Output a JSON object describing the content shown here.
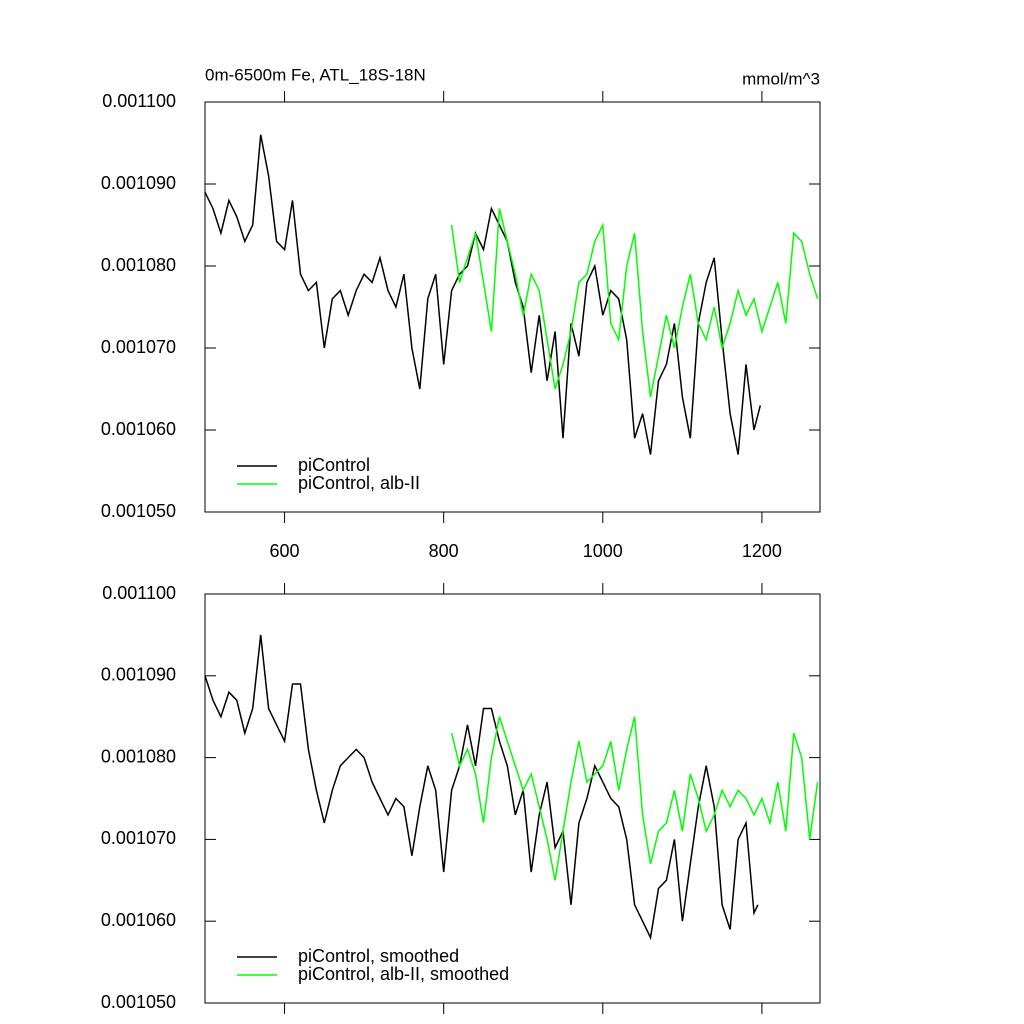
{
  "chart_data": [
    {
      "type": "line",
      "title": "0m-6500m Fe, ATL_18S-18N",
      "units": "mmol/m^3",
      "xlim": [
        500,
        1273
      ],
      "xticks": [
        600,
        800,
        1000,
        1200
      ],
      "ylim": [
        0.00105,
        0.0011
      ],
      "yticks": [
        {
          "value": 0.00105,
          "label": "0.001050"
        },
        {
          "value": 0.00106,
          "label": "0.001060"
        },
        {
          "value": 0.00107,
          "label": "0.001070"
        },
        {
          "value": 0.00108,
          "label": "0.001080"
        },
        {
          "value": 0.00109,
          "label": "0.001090"
        },
        {
          "value": 0.0011,
          "label": "0.001100"
        }
      ],
      "legend": "lower left",
      "show_xtick_labels": true,
      "series": [
        {
          "name": "piControl",
          "color": "#000000",
          "x": [
            500,
            510,
            520,
            530,
            540,
            550,
            560,
            570,
            580,
            590,
            600,
            610,
            620,
            630,
            640,
            650,
            660,
            670,
            680,
            690,
            700,
            710,
            720,
            730,
            740,
            750,
            760,
            770,
            780,
            790,
            800,
            810,
            820,
            830,
            840,
            850,
            860,
            870,
            880,
            890,
            900,
            910,
            920,
            930,
            940,
            950,
            960,
            970,
            980,
            990,
            1000,
            1010,
            1020,
            1030,
            1040,
            1050,
            1060,
            1070,
            1080,
            1090,
            1100,
            1110,
            1120,
            1130,
            1140,
            1150,
            1160,
            1170,
            1180,
            1190,
            1198
          ],
          "values": [
            0.001089,
            0.001087,
            0.001084,
            0.001088,
            0.001086,
            0.001083,
            0.001085,
            0.001096,
            0.001091,
            0.001083,
            0.001082,
            0.001088,
            0.001079,
            0.001077,
            0.001078,
            0.00107,
            0.001076,
            0.001077,
            0.001074,
            0.001077,
            0.001079,
            0.001078,
            0.001081,
            0.001077,
            0.001075,
            0.001079,
            0.00107,
            0.001065,
            0.001076,
            0.001079,
            0.001068,
            0.001077,
            0.001079,
            0.00108,
            0.001084,
            0.001082,
            0.001087,
            0.001085,
            0.001083,
            0.001078,
            0.001075,
            0.001067,
            0.001074,
            0.001066,
            0.001072,
            0.001059,
            0.001073,
            0.001069,
            0.001078,
            0.00108,
            0.001074,
            0.001077,
            0.001076,
            0.001071,
            0.001059,
            0.001062,
            0.001057,
            0.001066,
            0.001068,
            0.001073,
            0.001064,
            0.001059,
            0.001073,
            0.001078,
            0.001081,
            0.001071,
            0.001062,
            0.001057,
            0.001068,
            0.00106,
            0.001063
          ]
        },
        {
          "name": "piControl, alb-II",
          "color": "#00ff00",
          "x": [
            810,
            820,
            830,
            840,
            850,
            860,
            870,
            880,
            890,
            900,
            910,
            920,
            930,
            940,
            950,
            960,
            970,
            980,
            990,
            1000,
            1010,
            1020,
            1030,
            1040,
            1050,
            1060,
            1070,
            1080,
            1090,
            1100,
            1110,
            1120,
            1130,
            1140,
            1150,
            1160,
            1170,
            1180,
            1190,
            1200,
            1210,
            1220,
            1230,
            1240,
            1250,
            1260,
            1270
          ],
          "values": [
            0.001085,
            0.001078,
            0.001081,
            0.001084,
            0.001078,
            0.001072,
            0.001087,
            0.001083,
            0.001079,
            0.001074,
            0.001079,
            0.001077,
            0.001071,
            0.001065,
            0.001068,
            0.001072,
            0.001078,
            0.001079,
            0.001083,
            0.001085,
            0.001073,
            0.001071,
            0.00108,
            0.001084,
            0.001072,
            0.001064,
            0.001069,
            0.001074,
            0.00107,
            0.001075,
            0.001079,
            0.001073,
            0.001071,
            0.001075,
            0.00107,
            0.001073,
            0.001077,
            0.001074,
            0.001076,
            0.001072,
            0.001075,
            0.001078,
            0.001073,
            0.001084,
            0.001083,
            0.001079,
            0.001076
          ]
        }
      ]
    },
    {
      "type": "line",
      "xlim": [
        500,
        1273
      ],
      "xticks": [
        600,
        800,
        1000,
        1200
      ],
      "ylim": [
        0.00105,
        0.0011
      ],
      "yticks": [
        {
          "value": 0.00105,
          "label": "0.001050"
        },
        {
          "value": 0.00106,
          "label": "0.001060"
        },
        {
          "value": 0.00107,
          "label": "0.001070"
        },
        {
          "value": 0.00108,
          "label": "0.001080"
        },
        {
          "value": 0.00109,
          "label": "0.001090"
        },
        {
          "value": 0.0011,
          "label": "0.001100"
        }
      ],
      "legend": "lower left",
      "show_xtick_labels": false,
      "series": [
        {
          "name": "piControl, smoothed",
          "color": "#000000",
          "x": [
            500,
            510,
            520,
            530,
            540,
            550,
            560,
            570,
            580,
            590,
            600,
            610,
            620,
            630,
            640,
            650,
            660,
            670,
            680,
            690,
            700,
            710,
            720,
            730,
            740,
            750,
            760,
            770,
            780,
            790,
            800,
            810,
            820,
            830,
            840,
            850,
            860,
            870,
            880,
            890,
            900,
            910,
            920,
            930,
            940,
            950,
            960,
            970,
            980,
            990,
            1000,
            1010,
            1020,
            1030,
            1040,
            1050,
            1060,
            1070,
            1080,
            1090,
            1100,
            1110,
            1120,
            1130,
            1140,
            1150,
            1160,
            1170,
            1180,
            1190,
            1195
          ],
          "values": [
            0.00109,
            0.001087,
            0.001085,
            0.001088,
            0.001087,
            0.001083,
            0.001086,
            0.001095,
            0.001086,
            0.001084,
            0.001082,
            0.001089,
            0.001089,
            0.001081,
            0.001076,
            0.001072,
            0.001076,
            0.001079,
            0.00108,
            0.001081,
            0.00108,
            0.001077,
            0.001075,
            0.001073,
            0.001075,
            0.001074,
            0.001068,
            0.001074,
            0.001079,
            0.001076,
            0.001066,
            0.001076,
            0.001079,
            0.001084,
            0.001079,
            0.001086,
            0.001086,
            0.001082,
            0.001079,
            0.001073,
            0.001076,
            0.001066,
            0.001073,
            0.001077,
            0.001069,
            0.001071,
            0.001062,
            0.001072,
            0.001075,
            0.001079,
            0.001077,
            0.001075,
            0.001074,
            0.00107,
            0.001062,
            0.00106,
            0.001058,
            0.001064,
            0.001065,
            0.00107,
            0.00106,
            0.001067,
            0.001074,
            0.001079,
            0.001074,
            0.001062,
            0.001059,
            0.00107,
            0.001072,
            0.001061,
            0.001062
          ]
        },
        {
          "name": "piControl, alb-II, smoothed",
          "color": "#00ff00",
          "x": [
            810,
            820,
            830,
            840,
            850,
            860,
            870,
            880,
            890,
            900,
            910,
            920,
            930,
            940,
            950,
            960,
            970,
            980,
            990,
            1000,
            1010,
            1020,
            1030,
            1040,
            1050,
            1060,
            1070,
            1080,
            1090,
            1100,
            1110,
            1120,
            1130,
            1140,
            1150,
            1160,
            1170,
            1180,
            1190,
            1200,
            1210,
            1220,
            1230,
            1240,
            1250,
            1260,
            1270
          ],
          "values": [
            0.001083,
            0.001079,
            0.001081,
            0.001078,
            0.001072,
            0.00108,
            0.001085,
            0.001082,
            0.001079,
            0.001076,
            0.001078,
            0.001074,
            0.00107,
            0.001065,
            0.001071,
            0.001077,
            0.001082,
            0.001077,
            0.001078,
            0.001079,
            0.001082,
            0.001076,
            0.001081,
            0.001085,
            0.001073,
            0.001067,
            0.001071,
            0.001072,
            0.001076,
            0.001071,
            0.001078,
            0.001075,
            0.001071,
            0.001073,
            0.001076,
            0.001074,
            0.001076,
            0.001075,
            0.001073,
            0.001075,
            0.001072,
            0.001077,
            0.001071,
            0.001083,
            0.00108,
            0.00107,
            0.001077
          ]
        }
      ]
    }
  ]
}
